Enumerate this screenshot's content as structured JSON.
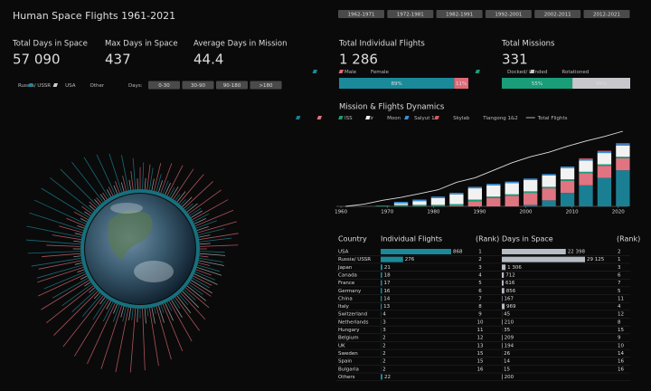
{
  "header": {
    "title": "Human Space Flights 1961-2021"
  },
  "kpis": [
    {
      "label": "Total Days in Space",
      "value": "57 090"
    },
    {
      "label": "Max Days in Space",
      "value": "437"
    },
    {
      "label": "Average Days in Mission",
      "value": "44.4"
    }
  ],
  "legend": [
    {
      "name": "Russia/ USSR",
      "color": "#e06a78"
    },
    {
      "name": "USA",
      "color": "#1a8a9a"
    },
    {
      "name": "Other",
      "color": "#cccccc"
    }
  ],
  "days_filter": {
    "label": "Days:",
    "options": [
      "0-30",
      "30-90",
      "90-180",
      ">180"
    ]
  },
  "period_filter": [
    "1962-1971",
    "1972-1981",
    "1982-1991",
    "1992-2001",
    "2002-2011",
    "2012-2021"
  ],
  "flights": {
    "label": "Total Individual Flights",
    "value": "1 286",
    "parts": [
      {
        "name": "Male",
        "color": "#1a8a9a",
        "value": 89,
        "value_label": "89%"
      },
      {
        "name": "Female",
        "color": "#e06a78",
        "value": 11,
        "value_label": "11%"
      }
    ]
  },
  "missions": {
    "label": "Total Missions",
    "value": "331",
    "parts": [
      {
        "name": "Docked/ Landed",
        "color": "#1a9e7a",
        "value": 55,
        "value_label": "55%"
      },
      {
        "name": "Rotationed",
        "color": "#c8c8cc",
        "value": 45,
        "value_label": "45%"
      }
    ]
  },
  "chart_data": {
    "type": "stacked_bar_line",
    "title": "Mission & Flights Dynamics",
    "x": [
      1961,
      1965,
      1969,
      1973,
      1977,
      1981,
      1985,
      1989,
      1993,
      1997,
      2001,
      2005,
      2009,
      2013,
      2017,
      2021
    ],
    "series": [
      {
        "name": "ISS",
        "color": "#1b7f93",
        "values": [
          0,
          0,
          0,
          0,
          0,
          0,
          0,
          0,
          0,
          0,
          2,
          8,
          18,
          28,
          38,
          48
        ]
      },
      {
        "name": "Mir",
        "color": "#e07480",
        "values": [
          0,
          0,
          0,
          0,
          0,
          0,
          1,
          7,
          11,
          14,
          16,
          16,
          16,
          16,
          16,
          16
        ]
      },
      {
        "name": "Moon",
        "color": "#1a9e7a",
        "values": [
          0,
          0,
          1,
          2,
          2,
          2,
          2,
          2,
          2,
          2,
          2,
          2,
          2,
          2,
          2,
          2
        ]
      },
      {
        "name": "Salyut 1-7",
        "color": "#f2f2f2",
        "values": [
          0,
          0,
          0,
          2,
          5,
          9,
          13,
          15,
          15,
          15,
          15,
          15,
          15,
          15,
          15,
          15
        ]
      },
      {
        "name": "Skylab",
        "color": "#3b8fd6",
        "values": [
          0,
          0,
          0,
          2,
          2,
          2,
          2,
          2,
          2,
          2,
          2,
          2,
          2,
          2,
          2,
          2
        ]
      },
      {
        "name": "Tiangong 1&2",
        "color": "#e05560",
        "values": [
          0,
          0,
          0,
          0,
          0,
          0,
          0,
          0,
          0,
          0,
          0,
          0,
          0,
          1,
          1,
          1
        ]
      },
      {
        "name": "Total Flights",
        "type": "line",
        "color": "#dddddd",
        "values": [
          0,
          3,
          8,
          12,
          17,
          22,
          32,
          38,
          48,
          58,
          66,
          72,
          80,
          87,
          93,
          100
        ]
      }
    ],
    "xlim": [
      1959,
      2022
    ],
    "xticks": [
      1960,
      1970,
      1980,
      1990,
      2000,
      2010,
      2020
    ],
    "ylim": [
      0,
      100
    ]
  },
  "table": {
    "headers": [
      "Country",
      "Individual Flights",
      "(Rank)",
      "Days in Space",
      "(Rank)"
    ],
    "rows": [
      {
        "country": "USA",
        "flights": 868,
        "flights_rank": 1,
        "days": 22398,
        "days_label": "22 398",
        "days_rank": 2
      },
      {
        "country": "Russia/ USSR",
        "flights": 276,
        "flights_rank": 2,
        "days": 29125,
        "days_label": "29 125",
        "days_rank": 1
      },
      {
        "country": "Japan",
        "flights": 21,
        "flights_rank": 3,
        "days": 1306,
        "days_label": "1 306",
        "days_rank": 3
      },
      {
        "country": "Canada",
        "flights": 18,
        "flights_rank": 4,
        "days": 712,
        "days_rank": 6
      },
      {
        "country": "France",
        "flights": 17,
        "flights_rank": 5,
        "days": 616,
        "days_rank": 7
      },
      {
        "country": "Germany",
        "flights": 16,
        "flights_rank": 6,
        "days": 856,
        "days_rank": 5
      },
      {
        "country": "China",
        "flights": 14,
        "flights_rank": 7,
        "days": 167,
        "days_rank": 11
      },
      {
        "country": "Italy",
        "flights": 13,
        "flights_rank": 8,
        "days": 969,
        "days_rank": 4
      },
      {
        "country": "Switzerland",
        "flights": 4,
        "flights_rank": 9,
        "days": 45,
        "days_rank": 12
      },
      {
        "country": "Netherlands",
        "flights": 3,
        "flights_rank": 10,
        "days": 210,
        "days_rank": 8
      },
      {
        "country": "Hungary",
        "flights": 3,
        "flights_rank": 11,
        "days": 35,
        "days_rank": 15
      },
      {
        "country": "Belgium",
        "flights": 2,
        "flights_rank": 12,
        "days": 209,
        "days_rank": 9
      },
      {
        "country": "UK",
        "flights": 2,
        "flights_rank": 13,
        "days": 194,
        "days_rank": 10
      },
      {
        "country": "Sweden",
        "flights": 2,
        "flights_rank": 15,
        "days": 26,
        "days_rank": 14
      },
      {
        "country": "Spain",
        "flights": 2,
        "flights_rank": 15,
        "days": 14,
        "days_rank": 16
      },
      {
        "country": "Bulgaria",
        "flights": 2,
        "flights_rank": 16,
        "days": 15,
        "days_rank": 16
      },
      {
        "country": "Others",
        "flights": 22,
        "days": 200
      }
    ]
  }
}
